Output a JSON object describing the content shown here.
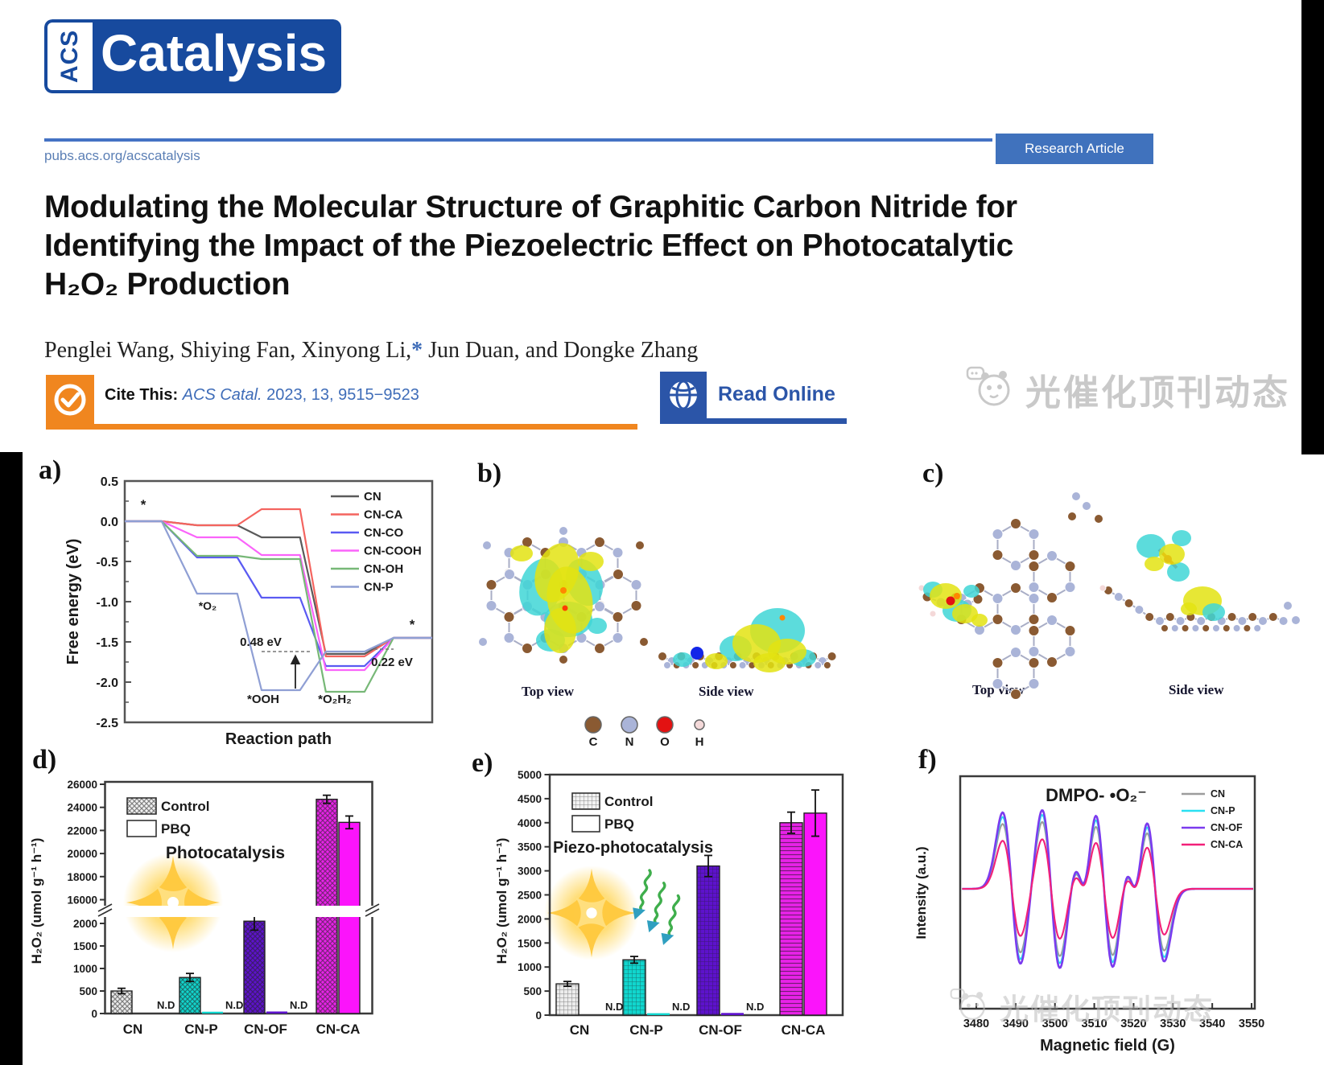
{
  "header": {
    "brand": {
      "acs": "ACS",
      "name": "Catalysis"
    },
    "url": "pubs.acs.org/acscatalysis",
    "badge": "Research Article",
    "title": {
      "line1": "Modulating the Molecular Structure of Graphitic Carbon Nitride for",
      "line2": "Identifying the Impact of the Piezoelectric Effect on Photocatalytic",
      "line3": "H₂O₂ Production"
    },
    "authors": {
      "pre": "Penglei Wang, Shiying Fan, Xinyong Li,",
      "star": "*",
      "post": " Jun Duan, and Dongke Zhang"
    },
    "cite": {
      "label": "Cite This:",
      "journal": "ACS Catal.",
      "rest": " 2023, 13, 9515−9523"
    },
    "read_online": "Read Online",
    "watermark": "光催化顶刊动态"
  },
  "colors": {
    "brand_blue": "#174a9e",
    "rule_blue": "#4472c4",
    "badge_blue": "#4072bd",
    "orange": "#f0861f",
    "link_blue": "#3e6cb8",
    "read_blue": "#2b55a8",
    "watermark_gray": "#c9c9c9"
  },
  "chart_data": [
    {
      "panel": "a)",
      "type": "line",
      "xlabel": "Reaction path",
      "ylabel": "Free energy (eV)",
      "ylim": [
        -2.5,
        0.5
      ],
      "yticks": [
        "0.5",
        "0.0",
        "-0.5",
        "-1.0",
        "-1.5",
        "-2.0",
        "-2.5"
      ],
      "step_labels": [
        "*",
        "*O₂",
        "*OOH",
        "*O₂H₂",
        "*"
      ],
      "series": [
        {
          "name": "CN",
          "color": "#5a5a5a",
          "values": [
            0,
            -0.05,
            -0.2,
            -1.65,
            -1.45
          ]
        },
        {
          "name": "CN-CA",
          "color": "#f4645f",
          "values": [
            0,
            -0.05,
            0.15,
            -1.68,
            -1.45
          ]
        },
        {
          "name": "CN-CO",
          "color": "#5a5af2",
          "values": [
            0,
            -0.45,
            -0.95,
            -1.8,
            -1.45
          ]
        },
        {
          "name": "CN-COOH",
          "color": "#fa64fa",
          "values": [
            0,
            -0.2,
            -0.42,
            -1.85,
            -1.45
          ]
        },
        {
          "name": "CN-OH",
          "color": "#77b877",
          "values": [
            0,
            -0.43,
            -0.47,
            -2.12,
            -1.45
          ]
        },
        {
          "name": "CN-P",
          "color": "#8f9fd4",
          "values": [
            0,
            -0.9,
            -2.1,
            -1.62,
            -1.45
          ]
        }
      ],
      "annotations": {
        "barrier1": "0.48 eV",
        "barrier2": "0.22 eV",
        "step2": "*O₂",
        "step3": "*OOH",
        "step4": "*O₂H₂",
        "star": "*"
      }
    },
    {
      "panel": "d)",
      "type": "bar",
      "ylabel": "H₂O₂  (umol g⁻¹ h⁻¹)",
      "categories": [
        "CN",
        "CN-P",
        "CN-OF",
        "CN-CA"
      ],
      "legend": [
        "Control",
        "PBQ"
      ],
      "caption": "Photocatalysis",
      "nd": "N.D",
      "axis_break": {
        "lower_range": [
          0,
          2500
        ],
        "upper_range": [
          16000,
          26000
        ],
        "lower_ticks": [
          0,
          500,
          1000,
          1500,
          2000
        ],
        "upper_ticks": [
          16000,
          18000,
          20000,
          22000,
          24000,
          26000
        ]
      },
      "control": {
        "values": [
          500,
          800,
          2050,
          24700
        ],
        "errors": [
          60,
          90,
          200,
          350
        ]
      },
      "pbq": {
        "values": [
          0,
          40,
          45,
          22700
        ],
        "errors": [
          0,
          0,
          0,
          550
        ],
        "nd_flags": [
          true,
          true,
          true,
          false
        ]
      },
      "category_colors": [
        "#ececec",
        "#10d6ce",
        "#5d12cc",
        "#e823e8"
      ],
      "pbq_color": "#fb14fb"
    },
    {
      "panel": "e)",
      "type": "bar",
      "ylabel": "H₂O₂  (umol g⁻¹ h⁻¹)",
      "categories": [
        "CN",
        "CN-P",
        "CN-OF",
        "CN-CA"
      ],
      "legend": [
        "Control",
        "PBQ"
      ],
      "caption": "Piezo-photocatalysis",
      "nd": "N.D",
      "ylim": [
        0,
        5000
      ],
      "yticks": [
        0,
        500,
        1000,
        1500,
        2000,
        2500,
        3000,
        3500,
        4000,
        4500,
        5000
      ],
      "control": {
        "values": [
          650,
          1150,
          3100,
          4000
        ],
        "errors": [
          50,
          70,
          220,
          220
        ]
      },
      "pbq": {
        "values": [
          0,
          40,
          45,
          4200
        ],
        "errors": [
          0,
          0,
          0,
          480
        ],
        "nd_flags": [
          true,
          true,
          true,
          false
        ]
      },
      "category_colors": [
        "#ececec",
        "#10d6ce",
        "#5d12cc",
        "#e823e8"
      ],
      "pbq_color": "#fb14fb"
    },
    {
      "panel": "f)",
      "type": "line",
      "title": "DMPO- •O₂⁻",
      "xlabel": "Magnetic field (G)",
      "ylabel": "Intensity (a.u.)",
      "xlim": [
        3475,
        3554
      ],
      "xticks": [
        3480,
        3490,
        3500,
        3510,
        3520,
        3530,
        3540,
        3550
      ],
      "peak_centers": [
        3489,
        3499,
        3512.5,
        3525.5
      ],
      "minor_centers": [
        3506.5,
        3519.5
      ],
      "series": [
        {
          "name": "CN",
          "color": "#9c9c9c",
          "amplitude": 0.85
        },
        {
          "name": "CN-P",
          "color": "#29e0f2",
          "amplitude": 0.94
        },
        {
          "name": "CN-OF",
          "color": "#7b3bee",
          "amplitude": 1.0
        },
        {
          "name": "CN-CA",
          "color": "#f22079",
          "amplitude": 0.63
        }
      ]
    }
  ],
  "panel_b": {
    "label": "b)",
    "top_view": "Top view",
    "side_view": "Side view",
    "atoms": [
      {
        "symbol": "C",
        "color": "#8a5a32"
      },
      {
        "symbol": "N",
        "color": "#aab4d8"
      },
      {
        "symbol": "O",
        "color": "#e31212"
      },
      {
        "symbol": "H",
        "color": "#f4d9d9"
      }
    ]
  },
  "panel_c": {
    "label": "c)",
    "top_view": "Top view",
    "side_view": "Side view"
  }
}
